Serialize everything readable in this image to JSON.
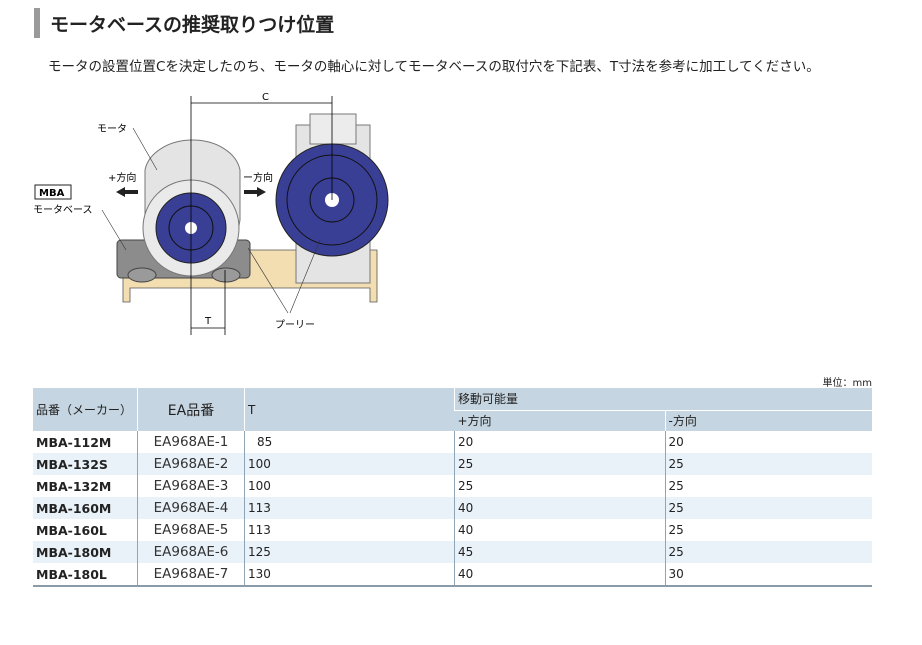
{
  "title": "モータベースの推奨取りつけ位置",
  "subtitle": "モータの設置位置Cを決定したのち、モータの軸心に対してモータベースの取付穴を下記表、T寸法を参考に加工してください。",
  "diagram": {
    "c": "C",
    "t": "T",
    "motor": "モータ",
    "plus": "+方向",
    "minus": "ー方向",
    "mba": "MBA",
    "base": "モータベース",
    "pulley": "プーリー",
    "colors": {
      "pulley": "#3a3f96",
      "base": "#f3deb2",
      "motor": "#e4e4e4"
    }
  },
  "unit": "単位：mm",
  "table": {
    "headers": {
      "part": "品番（メーカー）",
      "ea": "EA品番",
      "t": "T",
      "move": "移動可能量",
      "plus": "+方向",
      "minus": "-方向"
    },
    "rows": [
      {
        "part": "MBA-112M",
        "ea": "EA968AE-1",
        "t": "85",
        "plus": "20",
        "minus": "20"
      },
      {
        "part": "MBA-132S",
        "ea": "EA968AE-2",
        "t": "100",
        "plus": "25",
        "minus": "25"
      },
      {
        "part": "MBA-132M",
        "ea": "EA968AE-3",
        "t": "100",
        "plus": "25",
        "minus": "25"
      },
      {
        "part": "MBA-160M",
        "ea": "EA968AE-4",
        "t": "113",
        "plus": "40",
        "minus": "25"
      },
      {
        "part": "MBA-160L",
        "ea": "EA968AE-5",
        "t": "113",
        "plus": "40",
        "minus": "25"
      },
      {
        "part": "MBA-180M",
        "ea": "EA968AE-6",
        "t": "125",
        "plus": "45",
        "minus": "25"
      },
      {
        "part": "MBA-180L",
        "ea": "EA968AE-7",
        "t": "130",
        "plus": "40",
        "minus": "30"
      }
    ]
  }
}
